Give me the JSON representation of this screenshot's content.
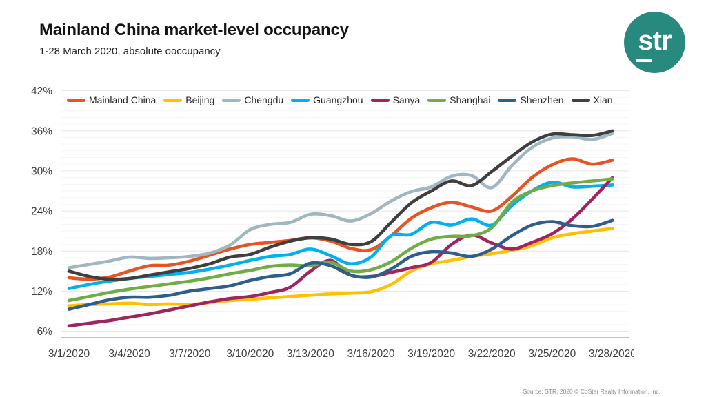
{
  "header": {
    "title": "Mainland China market-level occupancy",
    "subtitle": "1-28 March 2020, absolute ooccupancy",
    "logo_text": "str"
  },
  "source_note": "Source: STR. 2020 © CoStar Realty Information, Inc.",
  "colors": {
    "logo_teal": "#28897E",
    "grid_major": "#E5E5E5",
    "grid_minor": "#F5F5F5",
    "axis_line": "#ABABAB",
    "tick_text": "#3F3F3F",
    "legend_text": "#262626"
  },
  "chart_data": {
    "type": "line",
    "title": "Mainland China market-level occupancy",
    "subtitle": "1-28 March 2020, absolute ooccupancy",
    "x_unit": "date",
    "x_days": 28,
    "x_ticks": [
      {
        "day": 1,
        "label": "3/1/2020"
      },
      {
        "day": 4,
        "label": "3/4/2020"
      },
      {
        "day": 7,
        "label": "3/7/2020"
      },
      {
        "day": 10,
        "label": "3/10/2020"
      },
      {
        "day": 13,
        "label": "3/13/2020"
      },
      {
        "day": 16,
        "label": "3/16/2020"
      },
      {
        "day": 19,
        "label": "3/19/2020"
      },
      {
        "day": 22,
        "label": "3/22/2020"
      },
      {
        "day": 25,
        "label": "3/25/2020"
      },
      {
        "day": 28,
        "label": "3/28/2020"
      }
    ],
    "y_ticks": [
      {
        "value": 6,
        "label": "6%"
      },
      {
        "value": 12,
        "label": "12%"
      },
      {
        "value": 18,
        "label": "18%"
      },
      {
        "value": 24,
        "label": "24%"
      },
      {
        "value": 30,
        "label": "30%"
      },
      {
        "value": 36,
        "label": "36%"
      },
      {
        "value": 42,
        "label": "42%"
      }
    ],
    "ylim": [
      6,
      42
    ],
    "minor_grid_step_pct": 1,
    "legend_position": "top",
    "grid": "horizontal",
    "series": [
      {
        "name": "Mainland China",
        "color": "#E85322",
        "values": [
          14.0,
          13.8,
          14.1,
          15.0,
          15.8,
          15.9,
          16.5,
          17.4,
          18.3,
          19.0,
          19.3,
          19.6,
          20.0,
          19.5,
          18.4,
          18.2,
          20.3,
          22.9,
          24.5,
          25.3,
          24.6,
          24.0,
          26.2,
          29.0,
          30.9,
          31.8,
          31.0,
          31.6
        ]
      },
      {
        "name": "Beijing",
        "color": "#FFC000",
        "values": [
          9.8,
          10.0,
          10.1,
          10.2,
          10.0,
          10.1,
          10.0,
          10.3,
          10.6,
          10.8,
          11.0,
          11.2,
          11.4,
          11.6,
          11.7,
          11.9,
          13.0,
          15.0,
          16.1,
          16.6,
          17.2,
          17.6,
          18.1,
          18.8,
          20.0,
          20.6,
          21.0,
          21.4
        ]
      },
      {
        "name": "Chengdu",
        "color": "#A0B6C0",
        "values": [
          15.5,
          16.0,
          16.5,
          17.1,
          16.9,
          17.0,
          17.2,
          17.7,
          18.9,
          21.2,
          22.0,
          22.3,
          23.5,
          23.3,
          22.5,
          23.6,
          25.5,
          26.9,
          27.6,
          29.2,
          29.3,
          27.5,
          30.8,
          33.5,
          34.9,
          35.1,
          34.7,
          35.6
        ]
      },
      {
        "name": "Guangzhou",
        "color": "#00B0F0",
        "values": [
          12.4,
          13.0,
          13.5,
          13.9,
          14.2,
          14.5,
          14.8,
          15.3,
          15.9,
          16.6,
          17.2,
          17.5,
          18.3,
          17.3,
          16.1,
          17.1,
          20.3,
          20.5,
          22.3,
          21.9,
          22.8,
          21.9,
          24.8,
          27.0,
          28.3,
          27.6,
          27.7,
          27.9
        ]
      },
      {
        "name": "Sanya",
        "color": "#A0245F",
        "values": [
          6.8,
          7.2,
          7.6,
          8.1,
          8.6,
          9.2,
          9.8,
          10.4,
          10.9,
          11.2,
          11.8,
          12.6,
          15.0,
          16.6,
          14.4,
          14.2,
          14.8,
          15.5,
          16.3,
          19.0,
          20.4,
          19.2,
          18.3,
          19.3,
          20.6,
          22.8,
          25.8,
          29.0
        ]
      },
      {
        "name": "Shanghai",
        "color": "#70AD47",
        "values": [
          10.6,
          11.2,
          11.8,
          12.3,
          12.7,
          13.1,
          13.5,
          14.0,
          14.6,
          15.1,
          15.7,
          15.9,
          15.8,
          16.3,
          15.0,
          15.2,
          16.4,
          18.4,
          19.8,
          20.2,
          20.3,
          21.5,
          25.3,
          27.0,
          27.8,
          28.2,
          28.5,
          28.8
        ]
      },
      {
        "name": "Shenzhen",
        "color": "#2F5E8C",
        "values": [
          9.3,
          10.0,
          10.7,
          11.1,
          11.1,
          11.4,
          12.0,
          12.4,
          12.8,
          13.6,
          14.2,
          14.6,
          16.2,
          15.8,
          14.4,
          14.1,
          15.3,
          17.2,
          17.9,
          17.7,
          17.2,
          18.3,
          20.3,
          21.9,
          22.4,
          21.8,
          21.7,
          22.6
        ]
      },
      {
        "name": "Xian",
        "color": "#3F3F3F",
        "values": [
          15.0,
          14.2,
          13.8,
          13.9,
          14.4,
          14.9,
          15.4,
          16.1,
          17.1,
          17.5,
          18.6,
          19.5,
          20.0,
          19.8,
          19.0,
          19.4,
          22.3,
          25.2,
          27.0,
          28.5,
          27.8,
          29.9,
          32.2,
          34.3,
          35.5,
          35.4,
          35.3,
          36.0
        ]
      }
    ]
  }
}
